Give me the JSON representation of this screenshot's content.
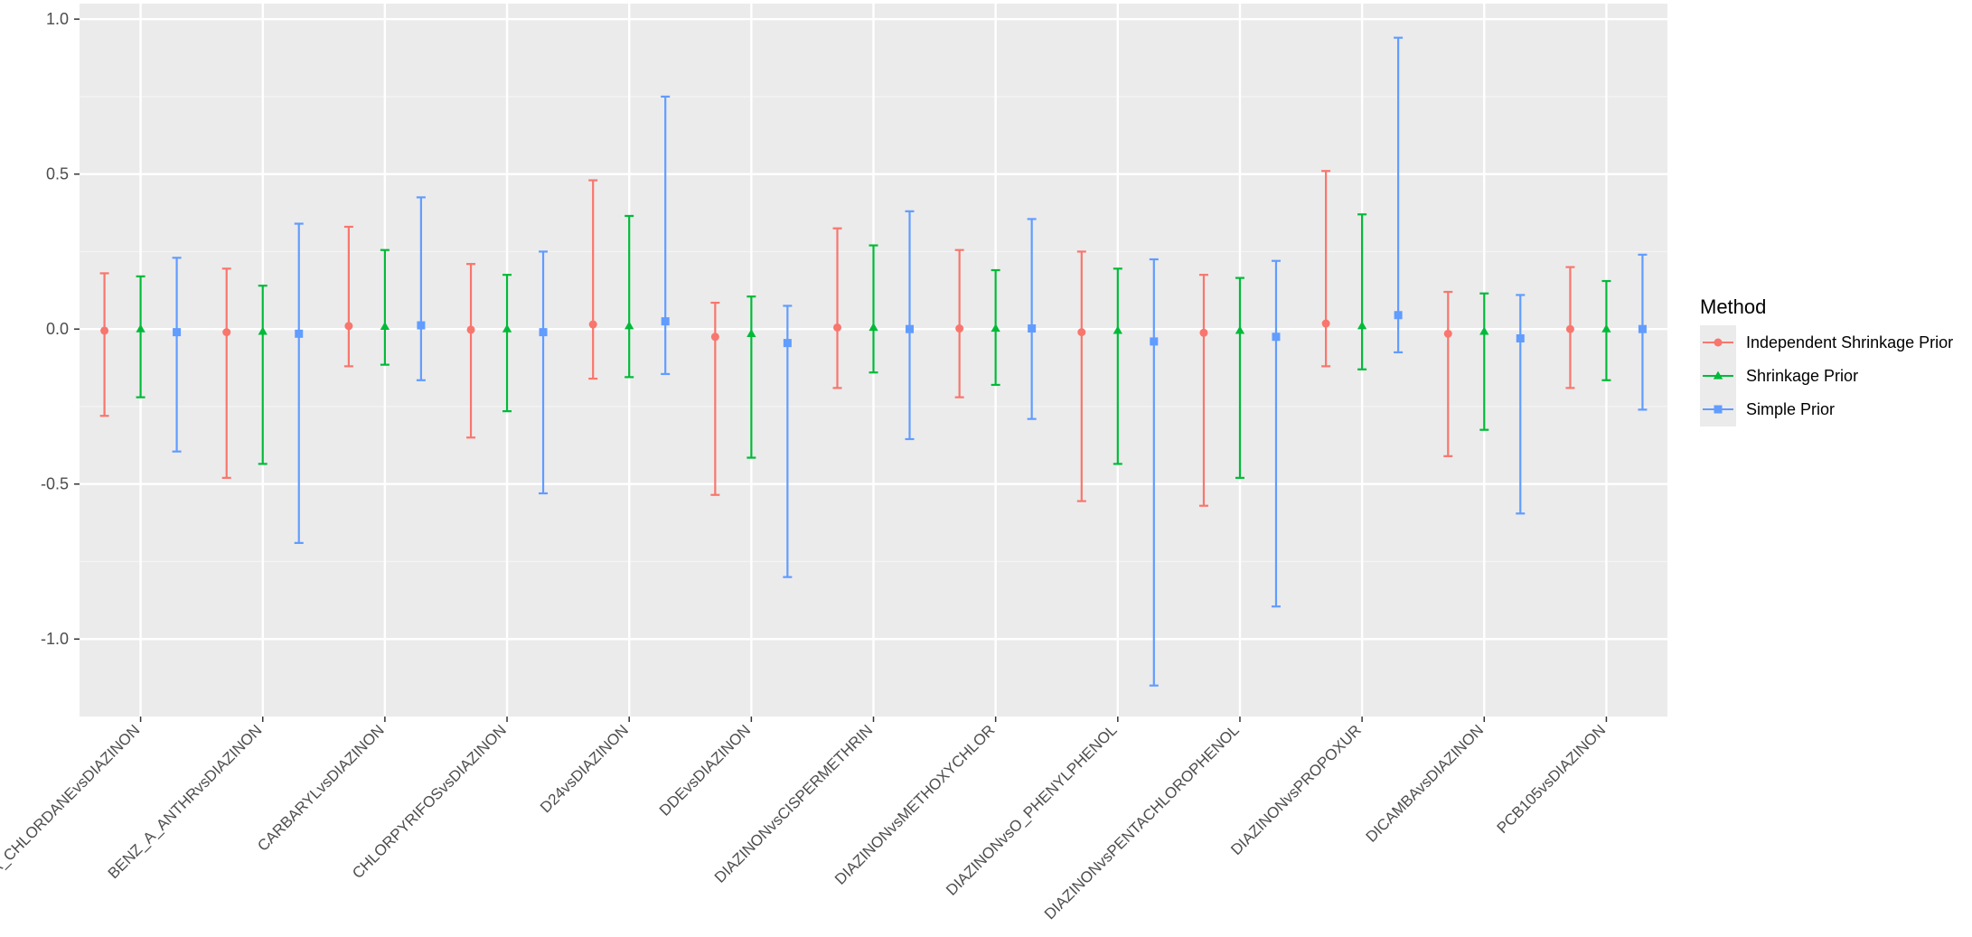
{
  "chart_data": {
    "type": "errorbar",
    "categories": [
      "A_CHLORDANEvsDIAZINON",
      "BENZ_A_ANTHRvsDIAZINON",
      "CARBARYLvsDIAZINON",
      "CHLORPYRIFOSvsDIAZINON",
      "D24vsDIAZINON",
      "DDEvsDIAZINON",
      "DIAZINONvsCISPERMETHRIN",
      "DIAZINONvsMETHOXYCHLOR",
      "DIAZINONvsO_PHENYLPHENOL",
      "DIAZINONvsPENTACHLOROPHENOL",
      "DIAZINONvsPROPOXUR",
      "DICAMBAvsDIAZINON",
      "PCB105vsDIAZINON"
    ],
    "series": [
      {
        "name": "Independent Shrinkage Prior",
        "color": "#F8766D",
        "marker": "circle",
        "estimate": [
          -0.005,
          -0.01,
          0.01,
          -0.002,
          0.015,
          -0.025,
          0.005,
          0.002,
          -0.01,
          -0.012,
          0.018,
          -0.015,
          0.0
        ],
        "lower": [
          -0.28,
          -0.48,
          -0.12,
          -0.35,
          -0.16,
          -0.535,
          -0.19,
          -0.22,
          -0.555,
          -0.57,
          -0.12,
          -0.41,
          -0.19
        ],
        "upper": [
          0.18,
          0.195,
          0.33,
          0.21,
          0.48,
          0.085,
          0.325,
          0.255,
          0.25,
          0.175,
          0.51,
          0.12,
          0.2
        ]
      },
      {
        "name": "Shrinkage Prior",
        "color": "#00BA38",
        "marker": "triangle",
        "estimate": [
          0.0,
          -0.008,
          0.008,
          0.0,
          0.01,
          -0.015,
          0.005,
          0.002,
          -0.005,
          -0.005,
          0.01,
          -0.008,
          0.0
        ],
        "lower": [
          -0.22,
          -0.435,
          -0.115,
          -0.265,
          -0.155,
          -0.415,
          -0.14,
          -0.18,
          -0.435,
          -0.48,
          -0.13,
          -0.325,
          -0.165
        ],
        "upper": [
          0.17,
          0.14,
          0.255,
          0.175,
          0.365,
          0.105,
          0.27,
          0.19,
          0.195,
          0.165,
          0.37,
          0.115,
          0.155
        ]
      },
      {
        "name": "Simple Prior",
        "color": "#619CFF",
        "marker": "square",
        "estimate": [
          -0.01,
          -0.015,
          0.012,
          -0.01,
          0.025,
          -0.045,
          0.0,
          0.002,
          -0.04,
          -0.025,
          0.045,
          -0.03,
          0.0
        ],
        "lower": [
          -0.395,
          -0.69,
          -0.165,
          -0.53,
          -0.145,
          -0.8,
          -0.355,
          -0.29,
          -1.15,
          -0.895,
          -0.075,
          -0.595,
          -0.26
        ],
        "upper": [
          0.23,
          0.34,
          0.425,
          0.25,
          0.75,
          0.075,
          0.38,
          0.355,
          0.225,
          0.22,
          0.94,
          0.11,
          0.24
        ]
      }
    ],
    "ylim": [
      -1.25,
      1.05
    ],
    "yticks": [
      -1.0,
      -0.5,
      0.0,
      0.5,
      1.0
    ],
    "ytick_labels": [
      "-1.0",
      "-0.5",
      "0.0",
      "0.5",
      "1.0"
    ],
    "xlabel": "",
    "ylabel": "",
    "title": "",
    "grid": true,
    "legend": {
      "title": "Method",
      "placement": "right"
    },
    "colors": {
      "panel_background": "#EBEBEB",
      "grid_major": "#FFFFFF",
      "grid_minor": "#F5F5F5",
      "tick_text": "#4D4D4D"
    }
  }
}
